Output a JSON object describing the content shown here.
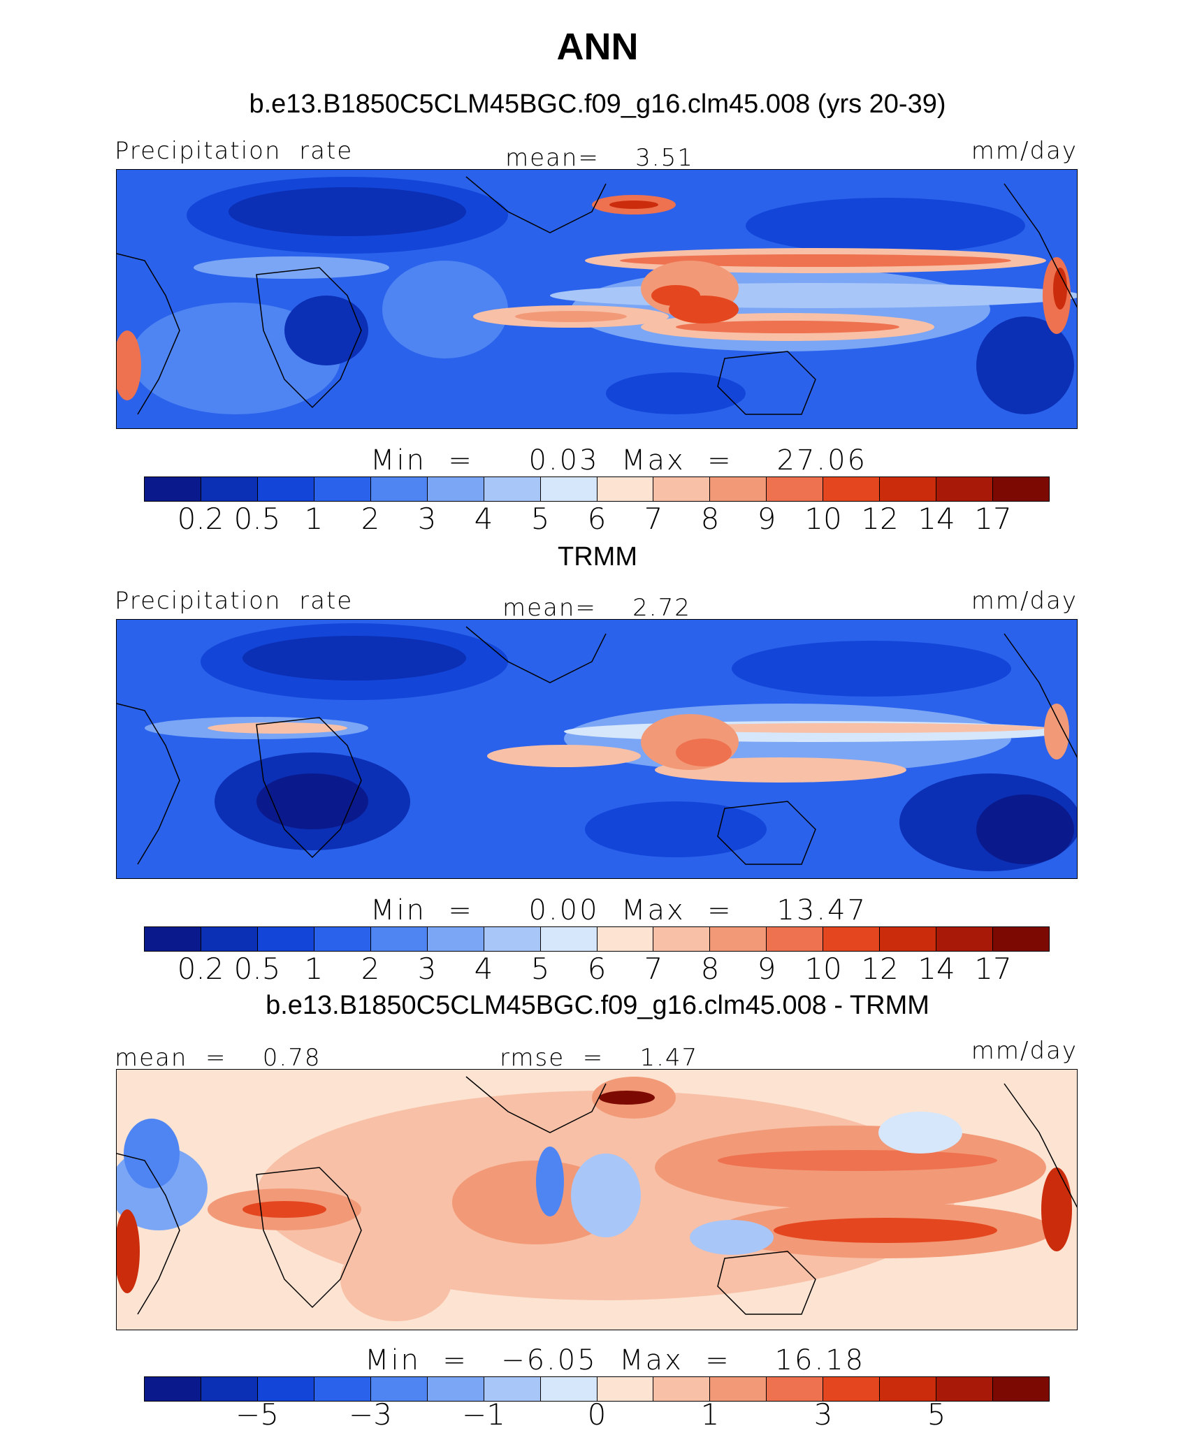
{
  "figure": {
    "title": "ANN"
  },
  "panels": [
    {
      "subtitle": "b.e13.B1850C5CLM45BGC.f09_g16.clm45.008 (yrs 20-39)",
      "left_label": "Precipitation  rate",
      "center_label": "mean=    3.51",
      "units": "mm/day",
      "minmax": "Min  =     0.03  Max  =    27.06",
      "colorbar_ticks": [
        "0.2",
        "0.5",
        "1",
        "2",
        "3",
        "4",
        "5",
        "6",
        "7",
        "8",
        "9",
        "10",
        "12",
        "14",
        "17"
      ]
    },
    {
      "subtitle": "TRMM",
      "left_label": "Precipitation  rate",
      "center_label": "mean=    2.72",
      "units": "mm/day",
      "minmax": "Min  =     0.00  Max  =    13.47",
      "colorbar_ticks": [
        "0.2",
        "0.5",
        "1",
        "2",
        "3",
        "4",
        "5",
        "6",
        "7",
        "8",
        "9",
        "10",
        "12",
        "14",
        "17"
      ]
    },
    {
      "subtitle": "b.e13.B1850C5CLM45BGC.f09_g16.clm45.008 - TRMM",
      "left_label": "mean  =    0.78",
      "center_label": "rmse  =    1.47",
      "units": "mm/day",
      "minmax": "Min  =   −6.05  Max  =    16.18",
      "colorbar_ticks": [
        "−5",
        "−3",
        "−1",
        "0",
        "1",
        "3",
        "5"
      ]
    }
  ],
  "colormap": [
    "#0a1a8c",
    "#0b2fb5",
    "#1346d8",
    "#2a62ec",
    "#4f85f2",
    "#7aa6f5",
    "#a8c6f8",
    "#d6e6fb",
    "#fde4d2",
    "#f8c0a6",
    "#f29a78",
    "#ee7250",
    "#e4471f",
    "#cb2d0c",
    "#a81a07",
    "#7c0a02"
  ]
}
